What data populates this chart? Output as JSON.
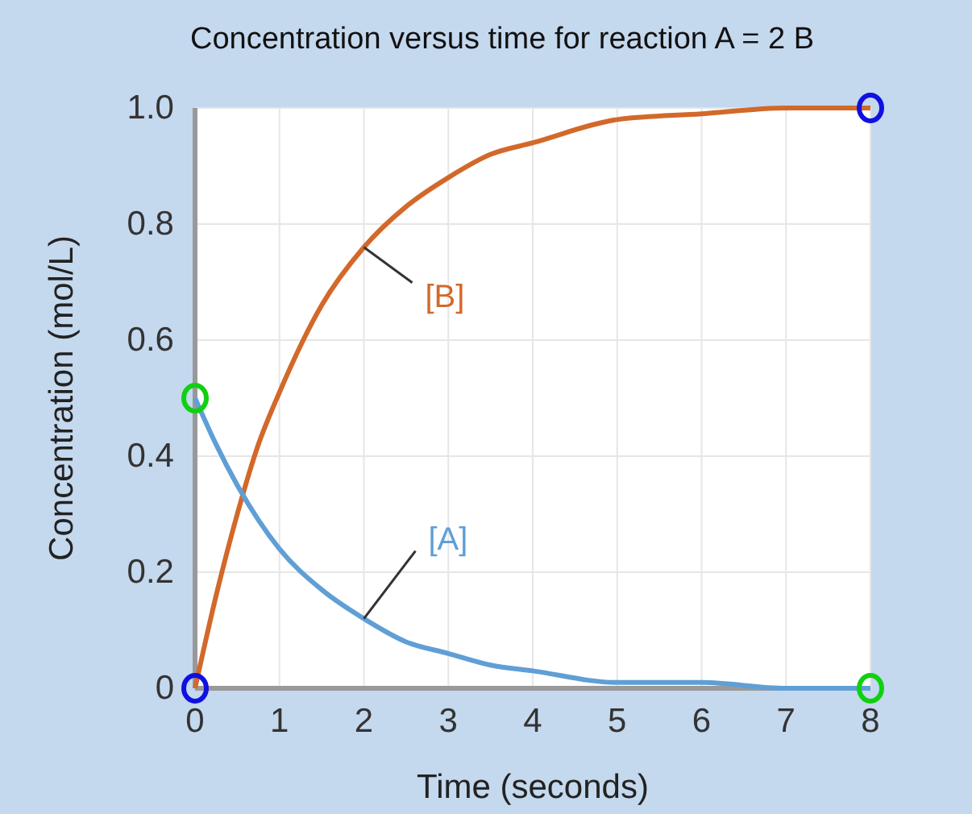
{
  "chart_data": {
    "type": "line",
    "title": "Concentration versus time for reaction A = 2 B",
    "xlabel": "Time (seconds)",
    "ylabel": "Concentration (mol/L)",
    "x": [
      0,
      0.25,
      0.5,
      0.75,
      1,
      1.5,
      2,
      2.5,
      3,
      3.5,
      4,
      5,
      6,
      7,
      8
    ],
    "series": [
      {
        "name": "[B]",
        "color": "#d2692a",
        "values": [
          0,
          0.16,
          0.3,
          0.42,
          0.51,
          0.66,
          0.76,
          0.83,
          0.88,
          0.92,
          0.94,
          0.98,
          0.99,
          1,
          1
        ]
      },
      {
        "name": "[A]",
        "color": "#5f9fd6",
        "values": [
          0.5,
          0.42,
          0.35,
          0.29,
          0.24,
          0.17,
          0.12,
          0.08,
          0.06,
          0.04,
          0.03,
          0.01,
          0.01,
          0,
          0
        ]
      }
    ],
    "xlim": [
      0,
      8
    ],
    "xticks": [
      0,
      1,
      2,
      3,
      4,
      5,
      6,
      7,
      8
    ],
    "ylim": [
      0,
      1
    ],
    "yticks": [
      0,
      0.2,
      0.4,
      0.6,
      0.8,
      {
        "value": 1,
        "label": "1.0"
      }
    ],
    "grid": true,
    "marker": "none",
    "line_style": "solid"
  }
}
